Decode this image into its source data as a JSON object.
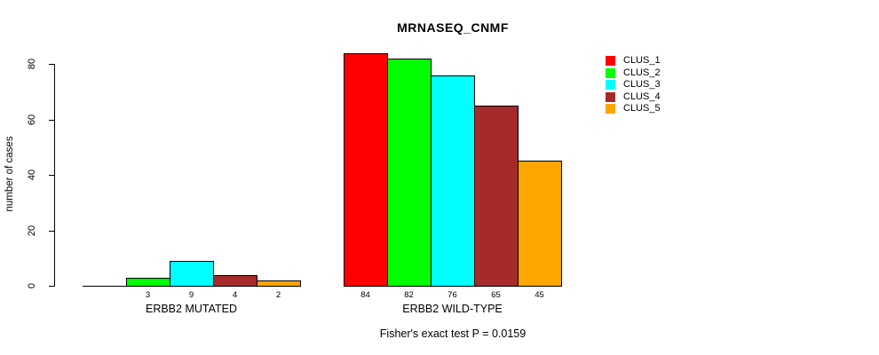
{
  "chart_data": {
    "type": "bar",
    "title": "MRNASEQ_CNMF",
    "ylabel": "number of cases",
    "xlabel": "",
    "ylim": [
      0,
      80
    ],
    "yticks": [
      0,
      20,
      40,
      60,
      80
    ],
    "grid": false,
    "legend_position": "right",
    "series": [
      "CLUS_1",
      "CLUS_2",
      "CLUS_3",
      "CLUS_4",
      "CLUS_5"
    ],
    "colors": [
      "#FF0000",
      "#00FF00",
      "#00FFFF",
      "#A52A2A",
      "#FFA500"
    ],
    "categories": [
      "ERBB2 MUTATED",
      "ERBB2 WILD-TYPE"
    ],
    "groups": [
      {
        "label": "ERBB2 MUTATED",
        "values": [
          0,
          3,
          9,
          4,
          2
        ],
        "bar_labels": [
          "",
          "3",
          "9",
          "4",
          "2"
        ]
      },
      {
        "label": "ERBB2 WILD-TYPE",
        "values": [
          84,
          82,
          76,
          65,
          45
        ],
        "bar_labels": [
          "84",
          "82",
          "76",
          "65",
          "45"
        ]
      }
    ],
    "annotation": "Fisher's exact test P = 0.0159"
  }
}
